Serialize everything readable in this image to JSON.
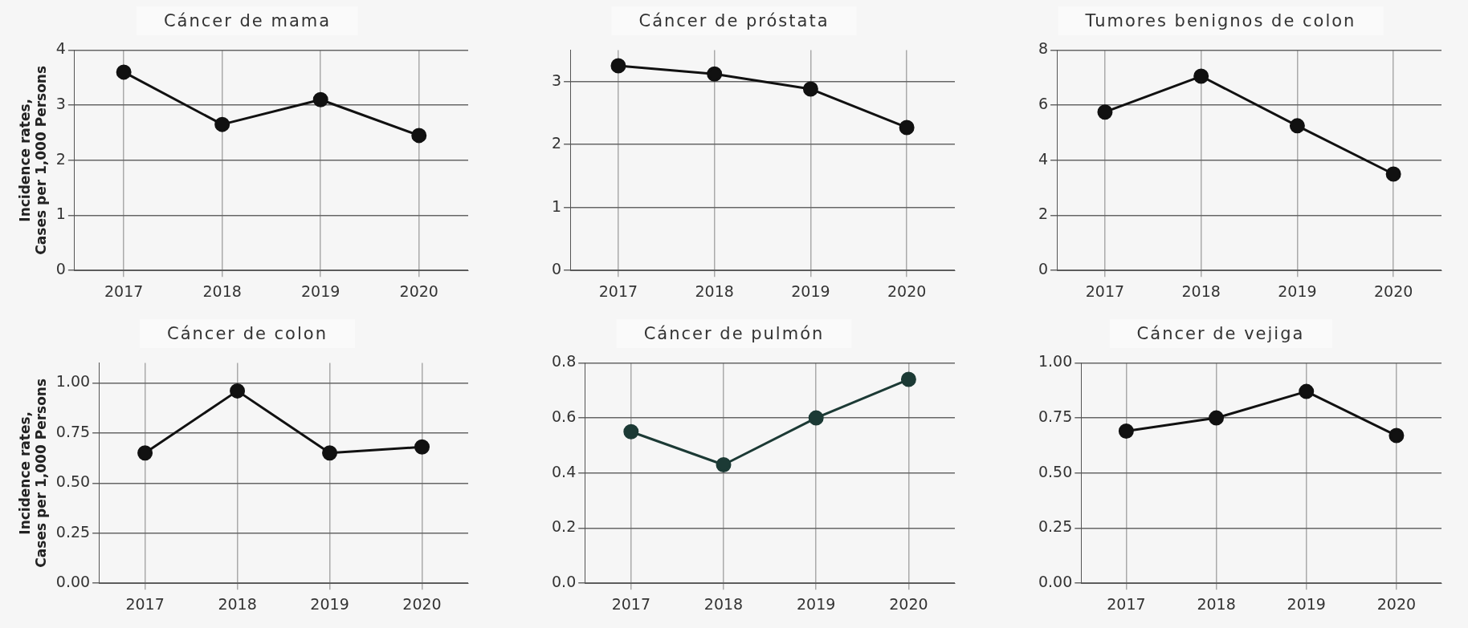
{
  "chart_data": [
    {
      "type": "line",
      "title": "Cáncer de mama",
      "ylabel": "Incidence rates,\nCases per 1,000 Persons",
      "categories": [
        "2017",
        "2018",
        "2019",
        "2020"
      ],
      "series": [
        {
          "color": "#111111",
          "values": [
            3.6,
            2.65,
            3.1,
            2.45
          ]
        }
      ],
      "ylim": [
        0,
        4
      ],
      "yticks": [
        0,
        1,
        2,
        3,
        4
      ],
      "grid": true,
      "legend": false,
      "marker": "circle",
      "line_style": "solid"
    },
    {
      "type": "line",
      "title": "Cáncer de próstata",
      "categories": [
        "2017",
        "2018",
        "2019",
        "2020"
      ],
      "series": [
        {
          "color": "#111111",
          "values": [
            3.25,
            3.12,
            2.88,
            2.27
          ]
        }
      ],
      "ylim": [
        0,
        3.5
      ],
      "yticks": [
        0,
        1,
        2,
        3
      ],
      "grid": true,
      "legend": false,
      "marker": "circle",
      "line_style": "solid"
    },
    {
      "type": "line",
      "title": "Tumores benignos de colon",
      "categories": [
        "2017",
        "2018",
        "2019",
        "2020"
      ],
      "series": [
        {
          "color": "#111111",
          "values": [
            5.75,
            7.05,
            5.25,
            3.5
          ]
        }
      ],
      "ylim": [
        0,
        8
      ],
      "yticks": [
        0,
        2,
        4,
        6,
        8
      ],
      "grid": true,
      "legend": false,
      "marker": "circle",
      "line_style": "solid"
    },
    {
      "type": "line",
      "title": "Cáncer de colon",
      "ylabel": "Incidence rates,\nCases per 1,000 Persons",
      "categories": [
        "2017",
        "2018",
        "2019",
        "2020"
      ],
      "series": [
        {
          "color": "#111111",
          "values": [
            0.65,
            0.96,
            0.65,
            0.68
          ]
        }
      ],
      "ylim": [
        0,
        1.1
      ],
      "yticks": [
        {
          "value": 0,
          "label": "0.00"
        },
        {
          "value": 0.25,
          "label": "0.25"
        },
        {
          "value": 0.5,
          "label": "0.50"
        },
        {
          "value": 0.75,
          "label": "0.75"
        },
        {
          "value": 1,
          "label": "1.00"
        }
      ],
      "grid": true,
      "legend": false,
      "marker": "circle",
      "line_style": "solid"
    },
    {
      "type": "line",
      "title": "Cáncer de pulmón",
      "categories": [
        "2017",
        "2018",
        "2019",
        "2020"
      ],
      "series": [
        {
          "color": "#1c3a35",
          "values": [
            0.55,
            0.43,
            0.6,
            0.74
          ]
        }
      ],
      "ylim": [
        0,
        0.8
      ],
      "yticks": [
        {
          "value": 0,
          "label": "0.0"
        },
        0.2,
        0.4,
        0.6,
        0.8
      ],
      "grid": true,
      "legend": false,
      "marker": "circle",
      "line_style": "solid"
    },
    {
      "type": "line",
      "title": "Cáncer de vejiga",
      "categories": [
        "2017",
        "2018",
        "2019",
        "2020"
      ],
      "series": [
        {
          "color": "#111111",
          "values": [
            0.69,
            0.75,
            0.87,
            0.67
          ]
        }
      ],
      "ylim": [
        0,
        1
      ],
      "yticks": [
        {
          "value": 0,
          "label": "0.00"
        },
        {
          "value": 0.25,
          "label": "0.25"
        },
        {
          "value": 0.5,
          "label": "0.50"
        },
        {
          "value": 0.75,
          "label": "0.75"
        },
        {
          "value": 1,
          "label": "1.00"
        }
      ],
      "grid": true,
      "legend": false,
      "marker": "circle",
      "line_style": "solid"
    }
  ]
}
